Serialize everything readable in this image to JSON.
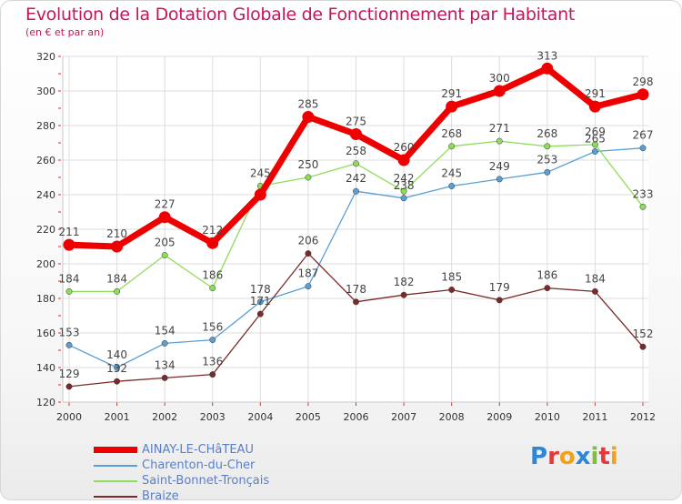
{
  "header": {
    "title": "Evolution de la Dotation Globale de Fonctionnement par Habitant",
    "subtitle": "(en € et par an)"
  },
  "logo": {
    "text": "Proxiti"
  },
  "chart_data": {
    "type": "line",
    "title": "Evolution de la Dotation Globale de Fonctionnement par Habitant",
    "subtitle": "(en € et par an)",
    "xlabel": "",
    "ylabel": "",
    "x": [
      "2000",
      "2001",
      "2002",
      "2003",
      "2004",
      "2005",
      "2006",
      "2007",
      "2008",
      "2009",
      "2010",
      "2011",
      "2012"
    ],
    "ylim": [
      120,
      320
    ],
    "yticks": [
      120,
      140,
      160,
      180,
      200,
      220,
      240,
      260,
      280,
      300,
      320
    ],
    "grid": true,
    "legend_position": "bottom-left",
    "series": [
      {
        "name": "AINAY-LE-CHâTEAU",
        "color": "#ee0000",
        "width": "thick",
        "values": [
          211,
          210,
          227,
          212,
          240,
          285,
          275,
          260,
          291,
          300,
          313,
          291,
          298
        ],
        "labels": [
          "211",
          "210",
          "227",
          "212",
          "",
          "285",
          "275",
          "260",
          "291",
          "300",
          "313",
          "291",
          "298"
        ]
      },
      {
        "name": "Charenton-du-Cher",
        "color": "#5a9fd4",
        "width": "thin",
        "values": [
          153,
          140,
          154,
          156,
          178,
          187,
          242,
          238,
          245,
          249,
          253,
          265,
          267
        ],
        "labels": [
          "153",
          "140",
          "154",
          "156",
          "178",
          "187",
          "242",
          "238",
          "245",
          "249",
          "253",
          "265",
          "267"
        ]
      },
      {
        "name": "Saint-Bonnet-Tronçais",
        "color": "#8fdc5a",
        "width": "thin",
        "values": [
          184,
          184,
          205,
          186,
          245,
          250,
          258,
          242,
          268,
          271,
          268,
          269,
          233
        ],
        "labels": [
          "184",
          "184",
          "205",
          "186",
          "245",
          "250",
          "258",
          "242",
          "268",
          "271",
          "268",
          "269",
          "233"
        ]
      },
      {
        "name": "Braize",
        "color": "#7a2a2a",
        "width": "thin",
        "values": [
          129,
          132,
          134,
          136,
          171,
          206,
          178,
          182,
          185,
          179,
          186,
          184,
          152
        ],
        "labels": [
          "129",
          "132",
          "134",
          "136",
          "171",
          "206",
          "178",
          "182",
          "185",
          "179",
          "186",
          "184",
          "152"
        ]
      }
    ]
  }
}
